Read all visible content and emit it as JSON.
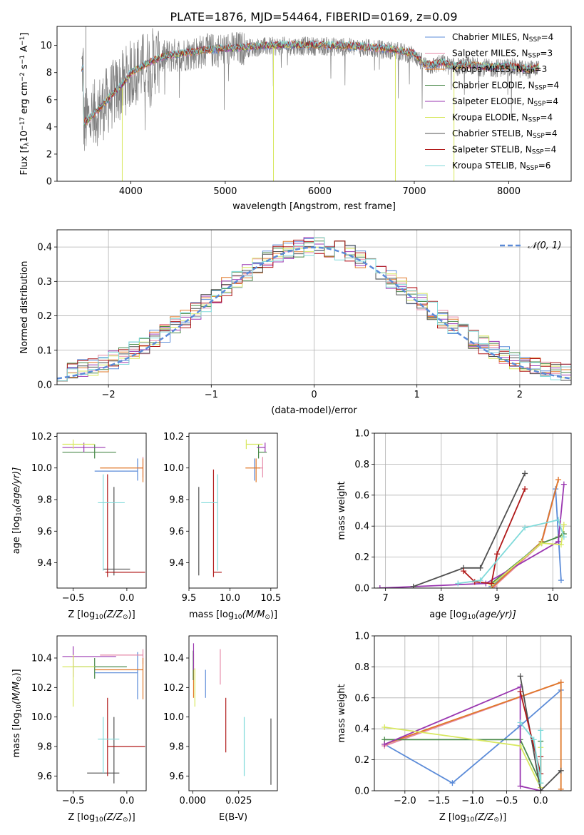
{
  "figure_title": "PLATE=1876, MJD=54464, FIBERID=0169, z=0.09",
  "colors": {
    "CM": "#5b8bd8",
    "SM": "#e68aa8",
    "KM": "#e07828",
    "CE": "#4a8a4a",
    "SE": "#9a36b0",
    "KE": "#d8e860",
    "CS": "#505050",
    "SS": "#b01818",
    "KS": "#80dada",
    "gauss": "#5b8bd8",
    "data_gray": "#808080"
  },
  "chart_data": [
    {
      "id": "spectrum",
      "type": "line",
      "xlabel": "wavelength [Angstrom, rest frame]",
      "ylabel": "Flux [f",
      "ylabel_sub": "λ",
      "ylabel_rest": "10",
      "ylabel_sup1": "−17",
      "ylabel_unit": " erg cm",
      "ylabel_sup2": "−2",
      "ylabel_s": " s",
      "ylabel_sup3": "−1",
      "ylabel_A": " A",
      "ylabel_sup4": "−1",
      "ylabel_end": "]",
      "xlim": [
        3220,
        8660
      ],
      "ylim": [
        0,
        11.4
      ],
      "xticks": [
        4000,
        5000,
        6000,
        7000,
        8000
      ],
      "yticks": [
        0,
        2,
        4,
        6,
        8,
        10
      ],
      "legend_position": "right",
      "continuum": {
        "x": [
          3500,
          3600,
          3700,
          3800,
          3900,
          4000,
          4100,
          4200,
          4300,
          4400,
          4500,
          4600,
          4800,
          5000,
          5200,
          5400,
          5600,
          5800,
          6000,
          6200,
          6400,
          6600,
          6800,
          7000,
          7100,
          7200,
          7300,
          7400,
          7600,
          7800,
          8000,
          8200,
          8300
        ],
        "y": [
          4.2,
          4.8,
          5.5,
          6.3,
          7.0,
          7.9,
          8.3,
          8.7,
          9.0,
          9.2,
          9.3,
          9.4,
          9.6,
          9.7,
          9.8,
          9.9,
          9.95,
          9.95,
          9.95,
          9.9,
          9.85,
          9.75,
          9.6,
          9.3,
          8.6,
          8.5,
          8.7,
          8.4,
          8.5,
          8.3,
          8.4,
          8.2,
          8.3
        ]
      },
      "series": [
        {
          "key": "CM",
          "name": "Chabrier MILES, N",
          "sub": "SSP",
          "tail": "=4"
        },
        {
          "key": "SM",
          "name": "Salpeter MILES, N",
          "sub": "SSP",
          "tail": "=3"
        },
        {
          "key": "KM",
          "name": "Kroupa MILES, N",
          "sub": "SSP",
          "tail": "=3"
        },
        {
          "key": "CE",
          "name": "Chabrier ELODIE, N",
          "sub": "SSP",
          "tail": "=4"
        },
        {
          "key": "SE",
          "name": "Salpeter ELODIE, N",
          "sub": "SSP",
          "tail": "=4"
        },
        {
          "key": "KE",
          "name": "Kroupa ELODIE, N",
          "sub": "SSP",
          "tail": "=4"
        },
        {
          "key": "CS",
          "name": "Chabrier STELIB, N",
          "sub": "SSP",
          "tail": "=4"
        },
        {
          "key": "SS",
          "name": "Salpeter STELIB, N",
          "sub": "SSP",
          "tail": "=4"
        },
        {
          "key": "KS",
          "name": "Kroupa STELIB, N",
          "sub": "SSP",
          "tail": "=6"
        }
      ]
    },
    {
      "id": "residuals",
      "type": "bar",
      "xlabel": "(data-model)/error",
      "ylabel": "Normed distribution",
      "xlim": [
        -2.5,
        2.5
      ],
      "ylim": [
        0,
        0.45
      ],
      "xticks": [
        -2,
        -1,
        0,
        1,
        2
      ],
      "xtick_labels": [
        "−2",
        "−1",
        "0",
        "1",
        "2"
      ],
      "yticks": [
        0.0,
        0.1,
        0.2,
        0.3,
        0.4
      ],
      "ytick_labels": [
        "0.0",
        "0.1",
        "0.2",
        "0.3",
        "0.4"
      ],
      "legend_label": "𝒩(0, 1)",
      "bin_width": 0.1,
      "grid": true
    },
    {
      "id": "age_vs_Z",
      "type": "scatter",
      "xlabel": "Z [log",
      "xlabel_sub": "10",
      "xlabel_rest": "(Z/Z",
      "xlabel_sub2": "⊙",
      "xlabel_end": ")]",
      "ylabel": "age  [log",
      "ylabel_sub": "10",
      "ylabel_rest": "(age/yr)]",
      "xlim": [
        -0.65,
        0.18
      ],
      "ylim": [
        9.24,
        10.22
      ],
      "xticks": [
        -0.5,
        0.0
      ],
      "xtick_labels": [
        "−0.5",
        "0.0"
      ],
      "yticks": [
        9.4,
        9.6,
        9.8,
        10.0,
        10.2
      ],
      "ytick_labels": [
        "9.4",
        "9.6",
        "9.8",
        "10.0",
        "10.2"
      ],
      "points": [
        {
          "key": "CM",
          "x": 0.1,
          "y": 9.98,
          "xe": [
            0.4,
            0.0
          ],
          "ye": [
            0.06,
            0.08
          ]
        },
        {
          "key": "SM",
          "x": 0.15,
          "y": 10.0,
          "xe": [
            0.05,
            0.0
          ],
          "ye": [
            0.06,
            0.07
          ]
        },
        {
          "key": "KM",
          "x": 0.15,
          "y": 10.0,
          "xe": [
            0.4,
            0.0
          ],
          "ye": [
            0.09,
            0.06
          ]
        },
        {
          "key": "CE",
          "x": -0.3,
          "y": 10.1,
          "xe": [
            0.3,
            0.2
          ],
          "ye": [
            0.04,
            0.05
          ]
        },
        {
          "key": "SE",
          "x": -0.4,
          "y": 10.13,
          "xe": [
            0.2,
            0.2
          ],
          "ye": [
            0.03,
            0.03
          ]
        },
        {
          "key": "KE",
          "x": -0.5,
          "y": 10.15,
          "xe": [
            0.1,
            0.2
          ],
          "ye": [
            0.03,
            0.03
          ]
        },
        {
          "key": "CS",
          "x": -0.12,
          "y": 9.36,
          "xe": [
            0.1,
            0.15
          ],
          "ye": [
            0.04,
            0.52
          ]
        },
        {
          "key": "SS",
          "x": -0.18,
          "y": 9.34,
          "xe": [
            0.02,
            0.35
          ],
          "ye": [
            0.03,
            0.62
          ]
        },
        {
          "key": "KS",
          "x": -0.22,
          "y": 9.78,
          "xe": [
            0.05,
            0.2
          ],
          "ye": [
            0.43,
            0.18
          ]
        }
      ]
    },
    {
      "id": "age_vs_mass",
      "type": "scatter",
      "xlabel": "mass [log",
      "xlabel_sub": "10",
      "xlabel_rest": "(M/M",
      "xlabel_sub2": "⊙",
      "xlabel_end": ")]",
      "xlim": [
        9.5,
        10.58
      ],
      "ylim": [
        9.24,
        10.22
      ],
      "xticks": [
        9.5,
        10.0,
        10.5
      ],
      "xtick_labels": [
        "9.5",
        "10.0",
        "10.5"
      ],
      "yticks": [
        9.4,
        9.6,
        9.8,
        10.0,
        10.2
      ],
      "ytick_labels": [
        "9.4",
        "9.6",
        "9.8",
        "10.0",
        "10.2"
      ],
      "points": [
        {
          "key": "CM",
          "x": 10.3,
          "y": 9.98,
          "xe": [
            0.0,
            0.0
          ],
          "ye": [
            0.06,
            0.08
          ]
        },
        {
          "key": "SM",
          "x": 10.4,
          "y": 10.0,
          "xe": [
            0.05,
            0.0
          ],
          "ye": [
            0.06,
            0.07
          ]
        },
        {
          "key": "KM",
          "x": 10.32,
          "y": 10.0,
          "xe": [
            0.13,
            0.05
          ],
          "ye": [
            0.09,
            0.06
          ]
        },
        {
          "key": "CE",
          "x": 10.35,
          "y": 10.1,
          "xe": [
            0.0,
            0.1
          ],
          "ye": [
            0.04,
            0.05
          ]
        },
        {
          "key": "SE",
          "x": 10.43,
          "y": 10.13,
          "xe": [
            0.1,
            0.0
          ],
          "ye": [
            0.03,
            0.03
          ]
        },
        {
          "key": "KE",
          "x": 10.2,
          "y": 10.15,
          "xe": [
            0.0,
            0.2
          ],
          "ye": [
            0.03,
            0.03
          ]
        },
        {
          "key": "CS",
          "x": 9.62,
          "y": 9.36,
          "xe": [
            0.0,
            0.0
          ],
          "ye": [
            0.04,
            0.52
          ]
        },
        {
          "key": "SS",
          "x": 9.8,
          "y": 9.34,
          "xe": [
            0.0,
            0.1
          ],
          "ye": [
            0.03,
            0.65
          ]
        },
        {
          "key": "KS",
          "x": 9.85,
          "y": 9.78,
          "xe": [
            0.2,
            0.0
          ],
          "ye": [
            0.43,
            0.18
          ]
        }
      ]
    },
    {
      "id": "weight_vs_age",
      "type": "line",
      "xlabel": "age  [log",
      "xlabel_sub": "10",
      "xlabel_rest": "(age/yr)]",
      "ylabel": "mass weight",
      "xlim": [
        6.8,
        10.33
      ],
      "ylim": [
        0,
        1
      ],
      "xticks": [
        7,
        8,
        9,
        10
      ],
      "yticks": [
        0.0,
        0.2,
        0.4,
        0.6,
        0.8,
        1.0
      ],
      "ytick_labels": [
        "0.0",
        "0.2",
        "0.4",
        "0.6",
        "0.8",
        "1.0"
      ],
      "grid": true,
      "series": [
        {
          "key": "CM",
          "x": [
            8.9,
            9.8,
            10.05,
            10.15
          ],
          "y": [
            0.01,
            0.3,
            0.64,
            0.05
          ]
        },
        {
          "key": "SM",
          "x": [
            8.95,
            9.8,
            10.1
          ],
          "y": [
            0.01,
            0.29,
            0.7
          ]
        },
        {
          "key": "KM",
          "x": [
            8.9,
            9.8,
            10.1
          ],
          "y": [
            0.0,
            0.3,
            0.7
          ]
        },
        {
          "key": "CE",
          "x": [
            8.9,
            9.8,
            10.1,
            10.2
          ],
          "y": [
            0.03,
            0.29,
            0.33,
            0.35
          ]
        },
        {
          "key": "SE",
          "x": [
            6.9,
            8.8,
            10.1,
            10.2
          ],
          "y": [
            0.0,
            0.03,
            0.3,
            0.67
          ]
        },
        {
          "key": "KE",
          "x": [
            8.9,
            9.8,
            10.15,
            10.2
          ],
          "y": [
            0.02,
            0.29,
            0.28,
            0.41
          ]
        },
        {
          "key": "CS",
          "x": [
            7.5,
            8.4,
            8.7,
            9.5
          ],
          "y": [
            0.01,
            0.13,
            0.13,
            0.74
          ]
        },
        {
          "key": "SS",
          "x": [
            8.4,
            8.6,
            8.9,
            9.0,
            9.5
          ],
          "y": [
            0.11,
            0.04,
            0.03,
            0.22,
            0.64
          ]
        },
        {
          "key": "KS",
          "x": [
            8.3,
            8.7,
            9.5,
            10.1,
            10.2
          ],
          "y": [
            0.03,
            0.05,
            0.39,
            0.44,
            0.33
          ]
        }
      ]
    },
    {
      "id": "mass_vs_Z",
      "type": "scatter",
      "xlabel": "Z [log",
      "xlabel_sub": "10",
      "xlabel_rest": "(Z/Z",
      "xlabel_sub2": "⊙",
      "xlabel_end": ")]",
      "ylabel": "mass [log",
      "ylabel_sub": "10",
      "ylabel_rest": "(M/M",
      "ylabel_sub2": "⊙",
      "ylabel_end": ")]",
      "xlim": [
        -0.65,
        0.18
      ],
      "ylim": [
        9.5,
        10.55
      ],
      "xticks": [
        -0.5,
        0.0
      ],
      "xtick_labels": [
        "−0.5",
        "0.0"
      ],
      "yticks": [
        9.6,
        9.8,
        10.0,
        10.2,
        10.4
      ],
      "ytick_labels": [
        "9.6",
        "9.8",
        "10.0",
        "10.2",
        "10.4"
      ],
      "points": [
        {
          "key": "CM",
          "x": 0.1,
          "y": 10.3,
          "xe": [
            0.4,
            0.0
          ],
          "ye": [
            0.18,
            0.14
          ]
        },
        {
          "key": "SM",
          "x": 0.15,
          "y": 10.42,
          "xe": [
            0.4,
            0.0
          ],
          "ye": [
            0.06,
            0.04
          ]
        },
        {
          "key": "KM",
          "x": 0.15,
          "y": 10.32,
          "xe": [
            0.45,
            0.0
          ],
          "ye": [
            0.2,
            0.08
          ]
        },
        {
          "key": "CE",
          "x": -0.3,
          "y": 10.34,
          "xe": [
            0.2,
            0.3
          ],
          "ye": [
            0.08,
            0.06
          ]
        },
        {
          "key": "SE",
          "x": -0.5,
          "y": 10.41,
          "xe": [
            0.1,
            0.4
          ],
          "ye": [
            0.14,
            0.07
          ]
        },
        {
          "key": "KE",
          "x": -0.5,
          "y": 10.34,
          "xe": [
            0.1,
            0.2
          ],
          "ye": [
            0.27,
            0.08
          ]
        },
        {
          "key": "CS",
          "x": -0.12,
          "y": 9.62,
          "xe": [
            0.25,
            0.05
          ],
          "ye": [
            0.07,
            0.38
          ]
        },
        {
          "key": "SS",
          "x": -0.18,
          "y": 9.8,
          "xe": [
            0.0,
            0.35
          ],
          "ye": [
            0.2,
            0.33
          ]
        },
        {
          "key": "KS",
          "x": -0.22,
          "y": 9.85,
          "xe": [
            0.05,
            0.15
          ],
          "ye": [
            0.23,
            0.15
          ]
        }
      ]
    },
    {
      "id": "mass_vs_ebv",
      "type": "scatter",
      "xlabel": "E(B-V)",
      "xlim": [
        -0.002,
        0.046
      ],
      "ylim": [
        9.5,
        10.55
      ],
      "xticks": [
        0.0,
        0.025
      ],
      "xtick_labels": [
        "0.000",
        "0.025"
      ],
      "yticks": [
        9.6,
        9.8,
        10.0,
        10.2,
        10.4
      ],
      "ytick_labels": [
        "9.6",
        "9.8",
        "10.0",
        "10.2",
        "10.4"
      ],
      "points": [
        {
          "key": "CM",
          "x": 0.007,
          "y": 10.2,
          "ye": [
            0.07,
            0.12
          ]
        },
        {
          "key": "SM",
          "x": 0.015,
          "y": 10.34,
          "ye": [
            0.12,
            0.12
          ]
        },
        {
          "key": "KM",
          "x": 0.0005,
          "y": 10.33,
          "ye": [
            0.2,
            0.1
          ]
        },
        {
          "key": "CE",
          "x": 0.0003,
          "y": 10.35,
          "ye": [
            0.1,
            0.1
          ]
        },
        {
          "key": "SE",
          "x": 0.0005,
          "y": 10.4,
          "ye": [
            0.08,
            0.1
          ]
        },
        {
          "key": "KE",
          "x": 0.0012,
          "y": 10.23,
          "ye": [
            0.16,
            0.1
          ]
        },
        {
          "key": "CS",
          "x": 0.0425,
          "y": 9.72,
          "ye": [
            0.18,
            0.27
          ]
        },
        {
          "key": "SS",
          "x": 0.018,
          "y": 9.95,
          "ye": [
            0.19,
            0.18
          ]
        },
        {
          "key": "KS",
          "x": 0.028,
          "y": 9.8,
          "ye": [
            0.2,
            0.2
          ]
        }
      ]
    },
    {
      "id": "weight_vs_Z",
      "type": "line",
      "xlabel": "Z [log",
      "xlabel_sub": "10",
      "xlabel_rest": "(Z/Z",
      "xlabel_sub2": "⊙",
      "xlabel_end": ")]",
      "ylabel": "mass weight",
      "xlim": [
        -2.45,
        0.45
      ],
      "ylim": [
        0,
        1
      ],
      "xticks": [
        -2.0,
        -1.5,
        -1.0,
        -0.5,
        0.0
      ],
      "xtick_labels": [
        "−2.0",
        "−1.5",
        "−1.0",
        "−0.5",
        "0.0"
      ],
      "yticks": [
        0.0,
        0.2,
        0.4,
        0.6,
        0.8,
        1.0
      ],
      "ytick_labels": [
        "0.0",
        "0.2",
        "0.4",
        "0.6",
        "0.8",
        "1.0"
      ],
      "grid": true,
      "series": [
        {
          "key": "CM",
          "x": [
            -2.3,
            -1.3,
            -0.3,
            0.3
          ],
          "y": [
            0.3,
            0.05,
            0.42,
            0.65
          ]
        },
        {
          "key": "SM",
          "x": [
            -2.3,
            0.3
          ],
          "y": [
            0.29,
            0.7
          ]
        },
        {
          "key": "KM",
          "x": [
            -2.3,
            0.3,
            0.3
          ],
          "y": [
            0.3,
            0.7,
            0.01
          ]
        },
        {
          "key": "CE",
          "x": [
            -2.3,
            -0.3,
            0.0,
            0.0
          ],
          "y": [
            0.33,
            0.33,
            0.05,
            0.32
          ]
        },
        {
          "key": "SE",
          "x": [
            -2.3,
            -0.3,
            -0.3,
            0.0
          ],
          "y": [
            0.3,
            0.67,
            0.03,
            0.0
          ]
        },
        {
          "key": "KE",
          "x": [
            -2.3,
            -0.3,
            0.0,
            0.0
          ],
          "y": [
            0.41,
            0.29,
            0.02,
            0.28
          ]
        },
        {
          "key": "CS",
          "x": [
            -0.3,
            0.0,
            0.3
          ],
          "y": [
            0.74,
            0.0,
            0.13
          ]
        },
        {
          "key": "SS",
          "x": [
            -0.3,
            0.0,
            0.0
          ],
          "y": [
            0.64,
            0.11,
            0.22
          ]
        },
        {
          "key": "KS",
          "x": [
            -0.3,
            -0.1,
            0.0,
            0.0
          ],
          "y": [
            0.44,
            0.33,
            0.05,
            0.39
          ]
        }
      ]
    }
  ]
}
